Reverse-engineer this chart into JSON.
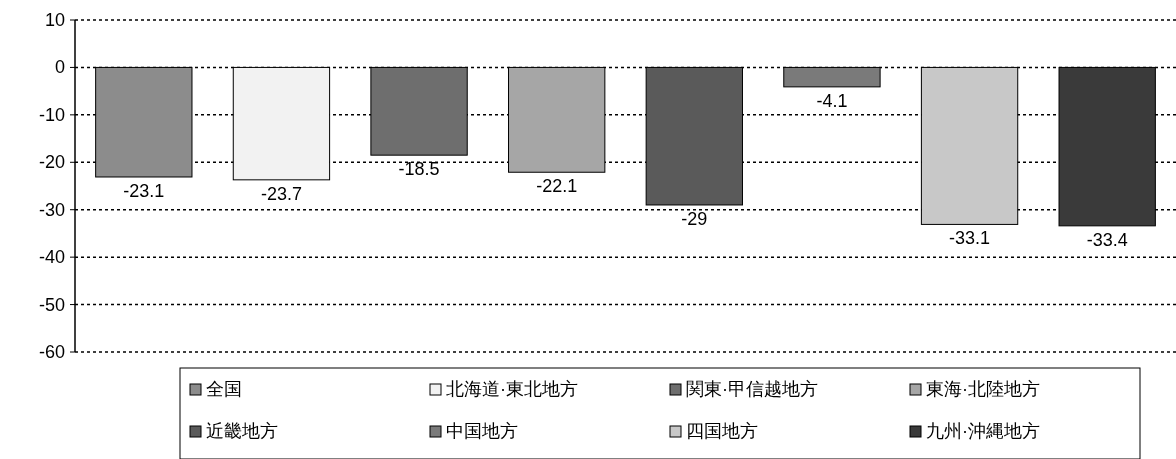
{
  "chart_data": {
    "type": "bar",
    "categories": [
      null
    ],
    "series": [
      {
        "name": "全国",
        "color": "#8c8c8c",
        "values": [
          -23.1
        ]
      },
      {
        "name": "北海道·東北地方",
        "color": "#f2f2f2",
        "values": [
          -23.7
        ]
      },
      {
        "name": "関東·甲信越地方",
        "color": "#6e6e6e",
        "values": [
          -18.5
        ]
      },
      {
        "name": "東海·北陸地方",
        "color": "#a6a6a6",
        "values": [
          -22.1
        ]
      },
      {
        "name": "近畿地方",
        "color": "#5a5a5a",
        "values": [
          -29
        ]
      },
      {
        "name": "中国地方",
        "color": "#7a7a7a",
        "values": [
          -4.1
        ]
      },
      {
        "name": "四国地方",
        "color": "#c8c8c8",
        "values": [
          -33.1
        ]
      },
      {
        "name": "九州·沖縄地方",
        "color": "#3a3a3a",
        "values": [
          -33.4
        ]
      }
    ],
    "ylim": [
      -60,
      10
    ],
    "yticks": [
      -60,
      -50,
      -40,
      -30,
      -20,
      -10,
      0,
      10
    ],
    "grid": "y",
    "line_style": "dotted",
    "legend": "bottom",
    "data_labels": true
  }
}
